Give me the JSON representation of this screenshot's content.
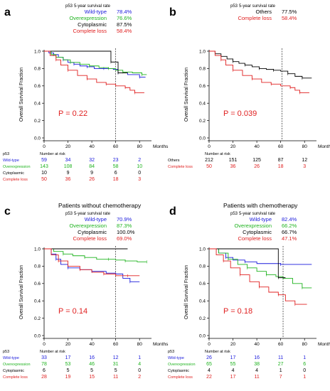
{
  "colors": {
    "wt": "#1a1adc",
    "over": "#1fb31f",
    "cyto": "#000000",
    "loss": "#e02020",
    "others": "#000000"
  },
  "chart_data": [
    {
      "panel": "a",
      "type": "line",
      "title": "",
      "ylabel": "Overall Survival Fraction",
      "xlabel": "Months",
      "xlim": [
        0,
        90
      ],
      "ylim": [
        0,
        1.0
      ],
      "xticks": [
        "0",
        "20",
        "40",
        "60",
        "80"
      ],
      "yticks": [
        "0.0",
        "0.2",
        "0.4",
        "0.6",
        "0.8",
        "1.0"
      ],
      "vline_x": 60,
      "p_value": "P = 0.22",
      "legend_header": {
        "group": "p53",
        "rate": "5-year survival rate"
      },
      "risk_header": {
        "group": "p53",
        "label": "Number at risk"
      },
      "series": [
        {
          "name": "Wild-type",
          "color_key": "wt",
          "rate": "78.4%",
          "risk": [
            "59",
            "34",
            "32",
            "23",
            "2"
          ],
          "points": [
            [
              0,
              1
            ],
            [
              4,
              0.98
            ],
            [
              8,
              0.96
            ],
            [
              12,
              0.93
            ],
            [
              16,
              0.9
            ],
            [
              20,
              0.87
            ],
            [
              25,
              0.85
            ],
            [
              30,
              0.83
            ],
            [
              36,
              0.82
            ],
            [
              42,
              0.8
            ],
            [
              50,
              0.8
            ],
            [
              58,
              0.79
            ],
            [
              62,
              0.75
            ],
            [
              70,
              0.73
            ],
            [
              80,
              0.7
            ],
            [
              85,
              0.7
            ]
          ]
        },
        {
          "name": "Overexpression",
          "color_key": "over",
          "rate": "76.6%",
          "risk": [
            "143",
            "108",
            "84",
            "58",
            "10"
          ],
          "points": [
            [
              0,
              1
            ],
            [
              6,
              0.96
            ],
            [
              10,
              0.93
            ],
            [
              16,
              0.9
            ],
            [
              22,
              0.87
            ],
            [
              30,
              0.85
            ],
            [
              38,
              0.83
            ],
            [
              46,
              0.81
            ],
            [
              54,
              0.8
            ],
            [
              60,
              0.78
            ],
            [
              66,
              0.76
            ],
            [
              74,
              0.75
            ],
            [
              82,
              0.73
            ],
            [
              86,
              0.73
            ]
          ]
        },
        {
          "name": "Cytoplasmic",
          "color_key": "cyto",
          "rate": "87.5%",
          "risk": [
            "10",
            "9",
            "9",
            "6",
            "0"
          ],
          "points": [
            [
              0,
              1
            ],
            [
              56,
              1
            ],
            [
              56,
              0.875
            ],
            [
              62,
              0.875
            ],
            [
              62,
              0.75
            ],
            [
              70,
              0.75
            ]
          ]
        },
        {
          "name": "Complete loss",
          "color_key": "loss",
          "rate": "58.4%",
          "risk": [
            "50",
            "36",
            "26",
            "18",
            "3"
          ],
          "points": [
            [
              0,
              1
            ],
            [
              5,
              0.95
            ],
            [
              10,
              0.9
            ],
            [
              14,
              0.84
            ],
            [
              20,
              0.78
            ],
            [
              28,
              0.72
            ],
            [
              36,
              0.68
            ],
            [
              44,
              0.64
            ],
            [
              52,
              0.62
            ],
            [
              60,
              0.6
            ],
            [
              68,
              0.58
            ],
            [
              72,
              0.55
            ],
            [
              76,
              0.52
            ],
            [
              84,
              0.52
            ]
          ]
        }
      ]
    },
    {
      "panel": "b",
      "type": "line",
      "title": "",
      "ylabel": "Overall Survival Fraction",
      "xlabel": "Months",
      "xlim": [
        0,
        90
      ],
      "ylim": [
        0,
        1.0
      ],
      "xticks": [
        "0",
        "20",
        "40",
        "60",
        "80"
      ],
      "yticks": [
        "0.0",
        "0.2",
        "0.4",
        "0.6",
        "0.8",
        "1.0"
      ],
      "vline_x": 61,
      "p_value": "P = 0.039",
      "legend_header": {
        "group": "p53",
        "rate": "5-year survival rate"
      },
      "risk_header": {
        "group": "",
        "label": "Number at risk"
      },
      "series": [
        {
          "name": "Others",
          "color_key": "others",
          "rate": "77.5%",
          "risk": [
            "212",
            "151",
            "125",
            "87",
            "12"
          ],
          "points": [
            [
              0,
              1
            ],
            [
              5,
              0.97
            ],
            [
              10,
              0.94
            ],
            [
              15,
              0.91
            ],
            [
              20,
              0.88
            ],
            [
              25,
              0.86
            ],
            [
              30,
              0.84
            ],
            [
              36,
              0.82
            ],
            [
              42,
              0.8
            ],
            [
              48,
              0.79
            ],
            [
              54,
              0.78
            ],
            [
              60,
              0.77
            ],
            [
              66,
              0.74
            ],
            [
              72,
              0.71
            ],
            [
              78,
              0.69
            ],
            [
              86,
              0.69
            ]
          ]
        },
        {
          "name": "Complete loss",
          "color_key": "loss",
          "rate": "58.4%",
          "risk": [
            "50",
            "36",
            "26",
            "18",
            "3"
          ],
          "points": [
            [
              0,
              1
            ],
            [
              5,
              0.95
            ],
            [
              10,
              0.9
            ],
            [
              14,
              0.84
            ],
            [
              20,
              0.78
            ],
            [
              28,
              0.72
            ],
            [
              36,
              0.68
            ],
            [
              44,
              0.64
            ],
            [
              52,
              0.62
            ],
            [
              60,
              0.6
            ],
            [
              68,
              0.58
            ],
            [
              72,
              0.55
            ],
            [
              76,
              0.52
            ],
            [
              84,
              0.52
            ]
          ]
        }
      ]
    },
    {
      "panel": "c",
      "type": "line",
      "title": "Patients without chemotherapy",
      "ylabel": "Overall Survival Fraction",
      "xlabel": "Months",
      "xlim": [
        0,
        90
      ],
      "ylim": [
        0,
        1.0
      ],
      "xticks": [
        "0",
        "20",
        "40",
        "60",
        "80"
      ],
      "yticks": [
        "0.0",
        "0.2",
        "0.4",
        "0.6",
        "0.8",
        "1.0"
      ],
      "vline_x": 60,
      "p_value": "P = 0.14",
      "legend_header": {
        "group": "p53",
        "rate": "5-year survival rate"
      },
      "risk_header": {
        "group": "p53",
        "label": "Number at risk"
      },
      "series": [
        {
          "name": "Wild-type",
          "color_key": "wt",
          "rate": "70.9%",
          "risk": [
            "33",
            "17",
            "16",
            "12",
            "1"
          ],
          "points": [
            [
              0,
              1
            ],
            [
              6,
              0.94
            ],
            [
              10,
              0.88
            ],
            [
              14,
              0.82
            ],
            [
              20,
              0.78
            ],
            [
              30,
              0.76
            ],
            [
              40,
              0.74
            ],
            [
              52,
              0.72
            ],
            [
              60,
              0.71
            ],
            [
              66,
              0.66
            ],
            [
              72,
              0.62
            ],
            [
              80,
              0.62
            ]
          ]
        },
        {
          "name": "Overexpression",
          "color_key": "over",
          "rate": "87.3%",
          "risk": [
            "78",
            "53",
            "46",
            "31",
            "4"
          ],
          "points": [
            [
              0,
              1
            ],
            [
              8,
              0.97
            ],
            [
              16,
              0.94
            ],
            [
              24,
              0.92
            ],
            [
              34,
              0.9
            ],
            [
              44,
              0.88
            ],
            [
              54,
              0.88
            ],
            [
              60,
              0.87
            ],
            [
              68,
              0.86
            ],
            [
              78,
              0.85
            ],
            [
              86,
              0.85
            ]
          ]
        },
        {
          "name": "Cytoplasmic",
          "color_key": "cyto",
          "rate": "100.0%",
          "risk": [
            "6",
            "5",
            "5",
            "5",
            "0"
          ],
          "points": [
            [
              0,
              1
            ],
            [
              70,
              1
            ]
          ]
        },
        {
          "name": "Complete loss",
          "color_key": "loss",
          "rate": "69.0%",
          "risk": [
            "28",
            "19",
            "15",
            "11",
            "2"
          ],
          "points": [
            [
              0,
              1
            ],
            [
              6,
              0.93
            ],
            [
              12,
              0.86
            ],
            [
              20,
              0.8
            ],
            [
              30,
              0.76
            ],
            [
              40,
              0.73
            ],
            [
              50,
              0.71
            ],
            [
              60,
              0.69
            ],
            [
              70,
              0.69
            ],
            [
              80,
              0.69
            ]
          ]
        }
      ]
    },
    {
      "panel": "d",
      "type": "line",
      "title": "Patients with chemotherapy",
      "ylabel": "Overall Survival Fraction",
      "xlabel": "Months",
      "xlim": [
        0,
        90
      ],
      "ylim": [
        0,
        1.0
      ],
      "xticks": [
        "0",
        "20",
        "40",
        "60",
        "80"
      ],
      "yticks": [
        "0.0",
        "0.2",
        "0.4",
        "0.6",
        "0.8",
        "1.0"
      ],
      "vline_x": 62,
      "p_value": "P = 0.18",
      "legend_header": {
        "group": "p53",
        "rate": "5-year survival rate"
      },
      "risk_header": {
        "group": "p53",
        "label": "Number at risk"
      },
      "series": [
        {
          "name": "Wild-type",
          "color_key": "wt",
          "rate": "82.4%",
          "risk": [
            "26",
            "17",
            "16",
            "11",
            "1"
          ],
          "points": [
            [
              0,
              1
            ],
            [
              8,
              0.95
            ],
            [
              14,
              0.9
            ],
            [
              20,
              0.87
            ],
            [
              30,
              0.85
            ],
            [
              40,
              0.83
            ],
            [
              60,
              0.82
            ],
            [
              86,
              0.82
            ]
          ]
        },
        {
          "name": "Overexpression",
          "color_key": "over",
          "rate": "66.2%",
          "risk": [
            "65",
            "55",
            "38",
            "27",
            "6"
          ],
          "points": [
            [
              0,
              1
            ],
            [
              8,
              0.95
            ],
            [
              16,
              0.88
            ],
            [
              24,
              0.82
            ],
            [
              32,
              0.78
            ],
            [
              40,
              0.74
            ],
            [
              48,
              0.7
            ],
            [
              56,
              0.68
            ],
            [
              62,
              0.66
            ],
            [
              70,
              0.6
            ],
            [
              78,
              0.55
            ],
            [
              86,
              0.55
            ]
          ]
        },
        {
          "name": "Cytoplasmic",
          "color_key": "cyto",
          "rate": "66.7%",
          "risk": [
            "4",
            "4",
            "4",
            "1",
            "0"
          ],
          "points": [
            [
              0,
              1
            ],
            [
              58,
              1
            ],
            [
              58,
              0.667
            ],
            [
              64,
              0.667
            ]
          ]
        },
        {
          "name": "Complete loss",
          "color_key": "loss",
          "rate": "47.1%",
          "risk": [
            "22",
            "17",
            "11",
            "7",
            "1"
          ],
          "points": [
            [
              0,
              1
            ],
            [
              6,
              0.93
            ],
            [
              12,
              0.86
            ],
            [
              18,
              0.78
            ],
            [
              26,
              0.7
            ],
            [
              34,
              0.62
            ],
            [
              42,
              0.56
            ],
            [
              50,
              0.5
            ],
            [
              58,
              0.47
            ],
            [
              64,
              0.4
            ],
            [
              72,
              0.36
            ],
            [
              82,
              0.36
            ]
          ]
        }
      ]
    }
  ],
  "panel_letters": [
    "a",
    "b",
    "c",
    "d"
  ]
}
